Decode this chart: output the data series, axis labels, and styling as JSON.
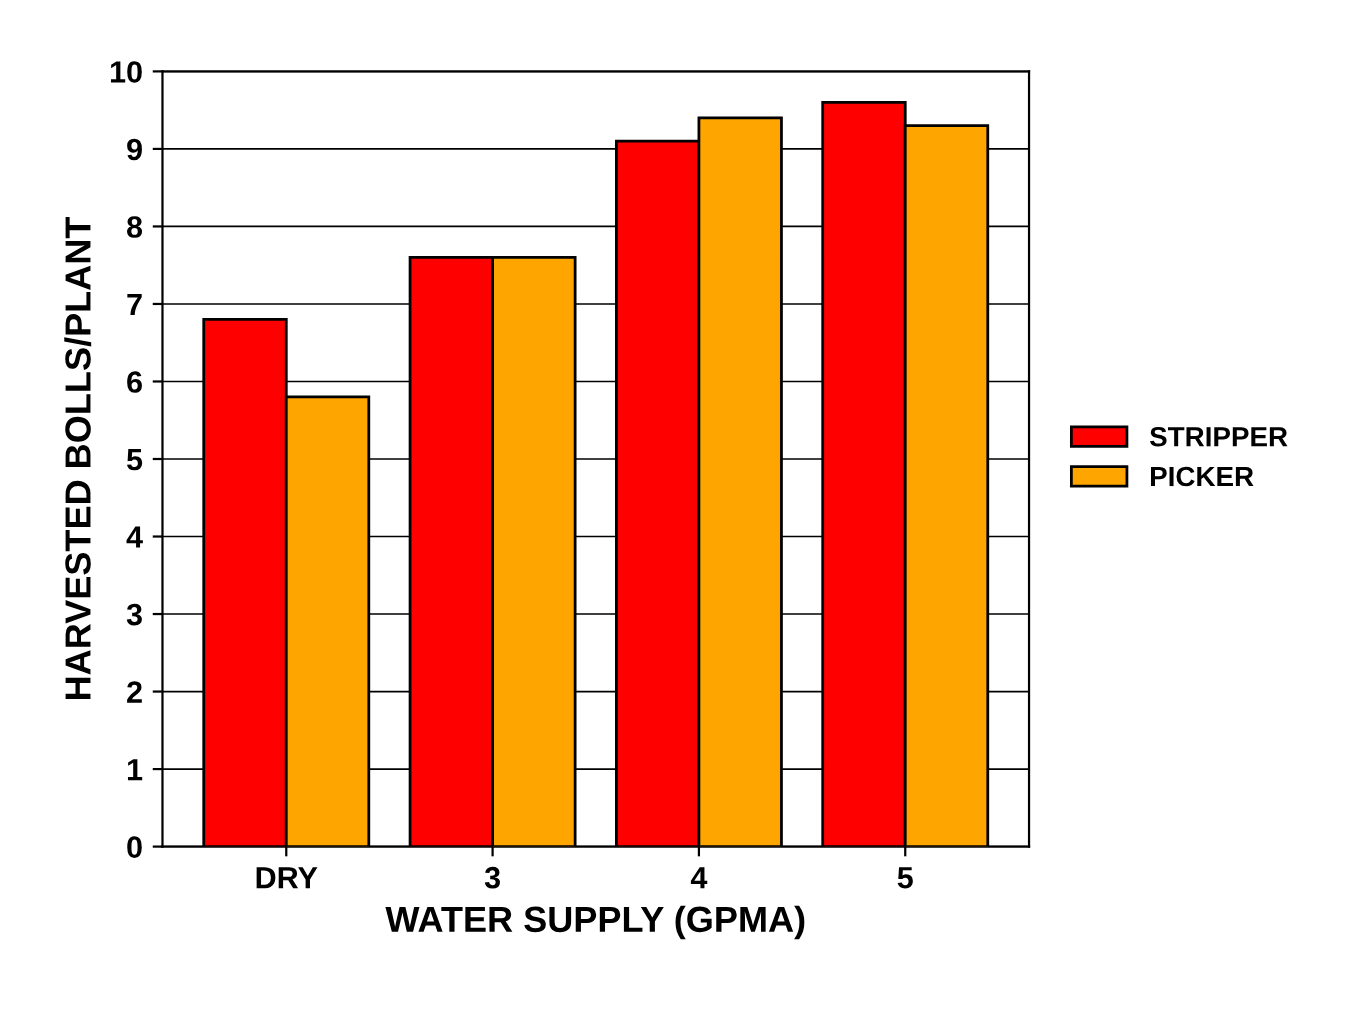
{
  "chart_data": {
    "type": "bar",
    "xlabel": "WATER SUPPLY (GPMA)",
    "ylabel": "HARVESTED BOLLS/PLANT",
    "categories": [
      "DRY",
      "3",
      "4",
      "5"
    ],
    "series": [
      {
        "name": "STRIPPER",
        "color": "#ff0000",
        "values": [
          6.8,
          7.6,
          9.1,
          9.6
        ]
      },
      {
        "name": "PICKER",
        "color": "#ffa500",
        "values": [
          5.8,
          7.6,
          9.4,
          9.3
        ]
      }
    ],
    "ylim": [
      0,
      10
    ],
    "yticks": [
      0,
      1,
      2,
      3,
      4,
      5,
      6,
      7,
      8,
      9,
      10
    ],
    "grid": "y",
    "legend": "right"
  }
}
